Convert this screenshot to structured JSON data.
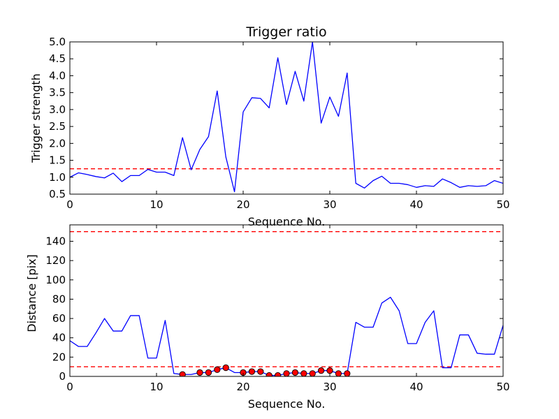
{
  "colors": {
    "line": "#0000ff",
    "threshold": "#ff0000",
    "marker_fill": "#ff0000",
    "marker_edge": "#000000",
    "axes": "#000000",
    "background": "#ffffff"
  },
  "chart_data": [
    {
      "type": "line",
      "title": "Trigger ratio",
      "xlabel": "Sequence No.",
      "ylabel": "Trigger strength",
      "xlim": [
        0,
        50
      ],
      "ylim": [
        0.5,
        5.0
      ],
      "xticks": [
        0,
        10,
        20,
        30,
        40,
        50
      ],
      "xtick_labels": [
        "0",
        "10",
        "20",
        "30",
        "40",
        "50"
      ],
      "yticks": [
        0.5,
        1.0,
        1.5,
        2.0,
        2.5,
        3.0,
        3.5,
        4.0,
        4.5,
        5.0
      ],
      "ytick_labels": [
        "0.5",
        "1.0",
        "1.5",
        "2.0",
        "2.5",
        "3.0",
        "3.5",
        "4.0",
        "4.5",
        "5.0"
      ],
      "grid": false,
      "series": [
        {
          "style": "solid",
          "color": "#0000ff",
          "x": [
            0,
            1,
            2,
            3,
            4,
            5,
            6,
            7,
            8,
            9,
            10,
            11,
            12,
            13,
            14,
            15,
            16,
            17,
            18,
            19,
            20,
            21,
            22,
            23,
            24,
            25,
            26,
            27,
            28,
            29,
            30,
            31,
            32,
            33,
            34,
            35,
            36,
            37,
            38,
            39,
            40,
            41,
            42,
            43,
            44,
            45,
            46,
            47,
            48,
            49,
            50
          ],
          "y": [
            1.0,
            1.13,
            1.08,
            1.02,
            0.98,
            1.12,
            0.87,
            1.05,
            1.05,
            1.23,
            1.15,
            1.15,
            1.05,
            2.17,
            1.22,
            1.82,
            2.2,
            3.55,
            1.6,
            0.57,
            2.93,
            3.35,
            3.33,
            3.05,
            4.53,
            3.15,
            4.13,
            3.25,
            5.0,
            2.6,
            3.37,
            2.8,
            4.08,
            0.82,
            0.68,
            0.9,
            1.03,
            0.82,
            0.82,
            0.78,
            0.7,
            0.75,
            0.73,
            0.95,
            0.84,
            0.7,
            0.75,
            0.73,
            0.75,
            0.9,
            0.82
          ]
        }
      ],
      "hlines": [
        {
          "y": 1.25,
          "style": "dashed",
          "color": "#ff0000"
        }
      ]
    },
    {
      "type": "line",
      "title": "",
      "xlabel": "Sequence No.",
      "ylabel": "Distance [pix]",
      "xlim": [
        0,
        50
      ],
      "ylim": [
        0,
        157
      ],
      "xticks": [
        0,
        10,
        20,
        30,
        40,
        50
      ],
      "xtick_labels": [
        "0",
        "10",
        "20",
        "30",
        "40",
        "50"
      ],
      "yticks": [
        0,
        20,
        40,
        60,
        80,
        100,
        120,
        140
      ],
      "ytick_labels": [
        "0",
        "20",
        "40",
        "60",
        "80",
        "100",
        "120",
        "140"
      ],
      "grid": false,
      "series": [
        {
          "style": "solid",
          "color": "#0000ff",
          "x": [
            0,
            1,
            2,
            3,
            4,
            5,
            6,
            7,
            8,
            9,
            10,
            11,
            12,
            13,
            14,
            15,
            16,
            17,
            18,
            19,
            20,
            21,
            22,
            23,
            24,
            25,
            26,
            27,
            28,
            29,
            30,
            31,
            32,
            33,
            34,
            35,
            36,
            37,
            38,
            39,
            40,
            41,
            42,
            43,
            44,
            45,
            46,
            47,
            48,
            49,
            50
          ],
          "y": [
            37,
            31,
            31,
            45,
            60,
            47,
            47,
            63,
            63,
            19,
            19,
            58,
            3,
            2,
            2,
            4,
            4,
            7,
            9,
            4,
            4,
            5,
            5,
            1,
            1,
            3,
            4,
            3,
            3,
            6,
            6,
            3,
            3,
            56,
            51,
            51,
            76,
            82,
            68,
            34,
            34,
            56,
            68,
            9,
            9,
            43,
            43,
            24,
            23,
            23,
            53
          ]
        },
        {
          "style": "markers",
          "marker": "circle",
          "color": "#ff0000",
          "x": [
            13,
            15,
            16,
            17,
            18,
            20,
            21,
            22,
            23,
            24,
            25,
            26,
            27,
            28,
            29,
            30,
            31,
            32
          ],
          "y": [
            2,
            4,
            4,
            7,
            9,
            4,
            5,
            5,
            1,
            1,
            3,
            4,
            3,
            3,
            6,
            6,
            3,
            3
          ]
        }
      ],
      "hlines": [
        {
          "y": 150,
          "style": "dashed",
          "color": "#ff0000"
        },
        {
          "y": 10,
          "style": "dashed",
          "color": "#ff0000"
        }
      ]
    }
  ]
}
